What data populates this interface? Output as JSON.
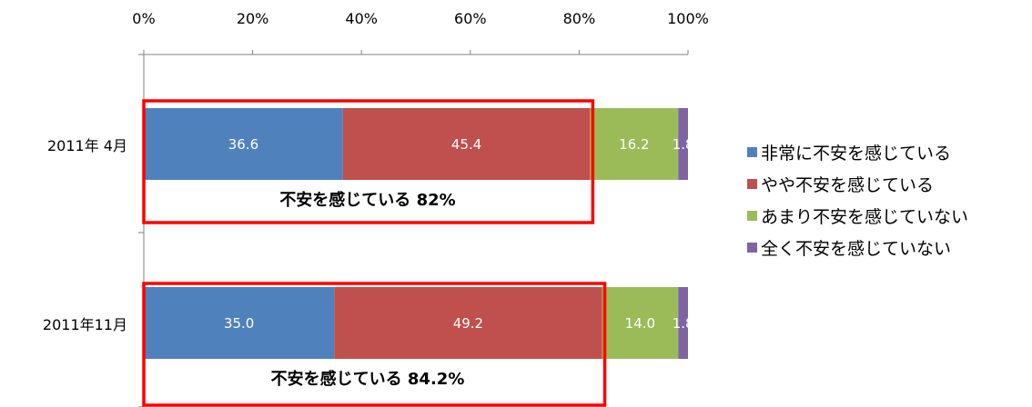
{
  "chart_data": {
    "type": "bar",
    "orientation": "horizontal",
    "stacked": true,
    "title": "",
    "xlabel": "",
    "ylabel": "",
    "xlim": [
      0,
      100
    ],
    "x_ticks": [
      "0%",
      "20%",
      "40%",
      "60%",
      "80%",
      "100%"
    ],
    "categories": [
      "2011年 4月",
      "2011年11月"
    ],
    "series": [
      {
        "name": "非常に不安を感じている",
        "color": "#4F81BD",
        "values": [
          36.6,
          35.0
        ],
        "labels": [
          "36.6",
          "35.0"
        ]
      },
      {
        "name": "やや不安を感じている",
        "color": "#C0504D",
        "values": [
          45.4,
          49.2
        ],
        "labels": [
          "45.4",
          "49.2"
        ]
      },
      {
        "name": "あまり不安を感じていない",
        "color": "#9BBB59",
        "values": [
          16.2,
          14.0
        ],
        "labels": [
          "16.2",
          "14.0"
        ]
      },
      {
        "name": "全く不安を感じていない",
        "color": "#8064A2",
        "values": [
          1.8,
          1.8
        ],
        "labels": [
          "1.8",
          "1.8"
        ]
      }
    ],
    "annotations": [
      "不安を感じている  82%",
      "不安を感じている  84.2%"
    ],
    "annotation_box_color": "#FF0000",
    "grid": false,
    "legend_position": "right"
  }
}
